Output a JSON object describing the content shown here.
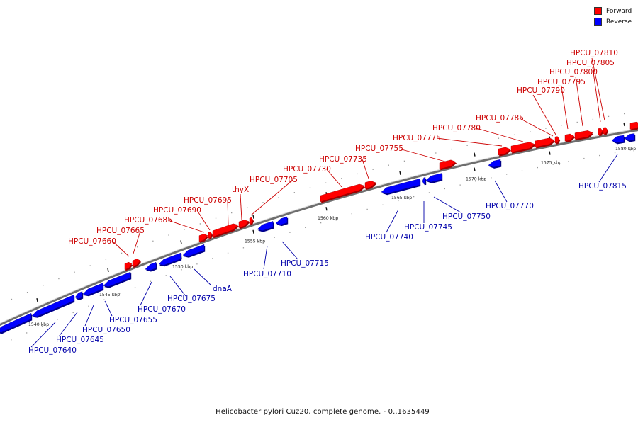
{
  "colors": {
    "forward": "#ff0000",
    "reverse": "#0000ff",
    "label_forward": "#cc0000",
    "label_reverse": "#0000aa",
    "backbone": "#808080"
  },
  "legend": [
    {
      "label": "Forward",
      "color": "#ff0000"
    },
    {
      "label": "Reverse",
      "color": "#0000ff"
    }
  ],
  "caption": "Helicobacter pylori Cuz20, complete genome. - 0..1635449",
  "ticks": [
    "1540 kbp",
    "1545 kbp",
    "1550 kbp",
    "1555 kbp",
    "1560 kbp",
    "1565 kbp",
    "1570 kbp",
    "1575 kbp",
    "1580 kbp"
  ],
  "genes_forward": [
    "HPCU_07660",
    "HPCU_07665",
    "HPCU_07685",
    "HPCU_07690",
    "HPCU_07695",
    "thyX",
    "HPCU_07705",
    "HPCU_07730",
    "HPCU_07735",
    "HPCU_07755",
    "HPCU_07775",
    "HPCU_07780",
    "HPCU_07785",
    "HPCU_07790",
    "HPCU_07795",
    "HPCU_07800",
    "HPCU_07805",
    "HPCU_07810"
  ],
  "genes_reverse": [
    "HPCU_07640",
    "HPCU_07645",
    "HPCU_07650",
    "HPCU_07655",
    "HPCU_07670",
    "HPCU_07675",
    "dnaA",
    "HPCU_07710",
    "HPCU_07715",
    "HPCU_07740",
    "HPCU_07745",
    "HPCU_07750",
    "HPCU_07770",
    "HPCU_07815"
  ]
}
